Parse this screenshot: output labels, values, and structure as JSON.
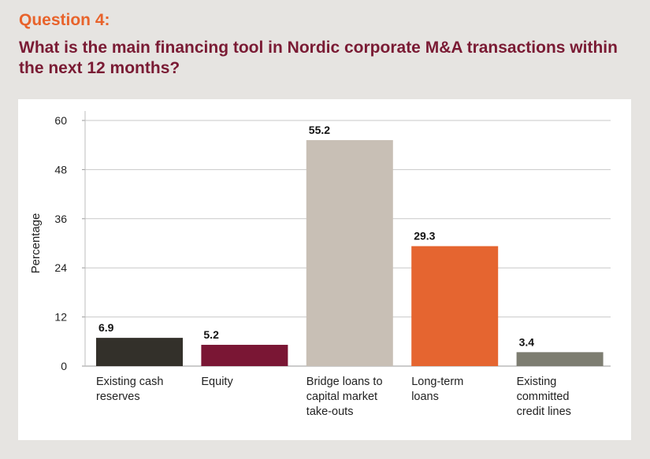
{
  "header": {
    "question_label": "Question 4:",
    "question_text": "What is the main financing tool in Nordic corporate M&A transactions within the next 12 months?"
  },
  "chart_data": {
    "type": "bar",
    "categories": [
      [
        "Existing cash",
        "reserves"
      ],
      [
        "Equity"
      ],
      [
        "Bridge loans to",
        "capital market",
        "take-outs"
      ],
      [
        "Long-term",
        "loans"
      ],
      [
        "Existing",
        "committed",
        "credit lines"
      ]
    ],
    "values": [
      6.9,
      5.2,
      55.2,
      29.3,
      3.4
    ],
    "value_labels": [
      "6.9",
      "5.2",
      "55.2",
      "29.3",
      "3.4"
    ],
    "colors": [
      "#33302a",
      "#7a1634",
      "#c8bfb5",
      "#e56530",
      "#7d7d71"
    ],
    "ylabel": "Percentage",
    "xlabel": "",
    "ylim": [
      0,
      60
    ],
    "yticks": [
      0,
      12,
      24,
      36,
      48,
      60
    ],
    "grid": true
  }
}
